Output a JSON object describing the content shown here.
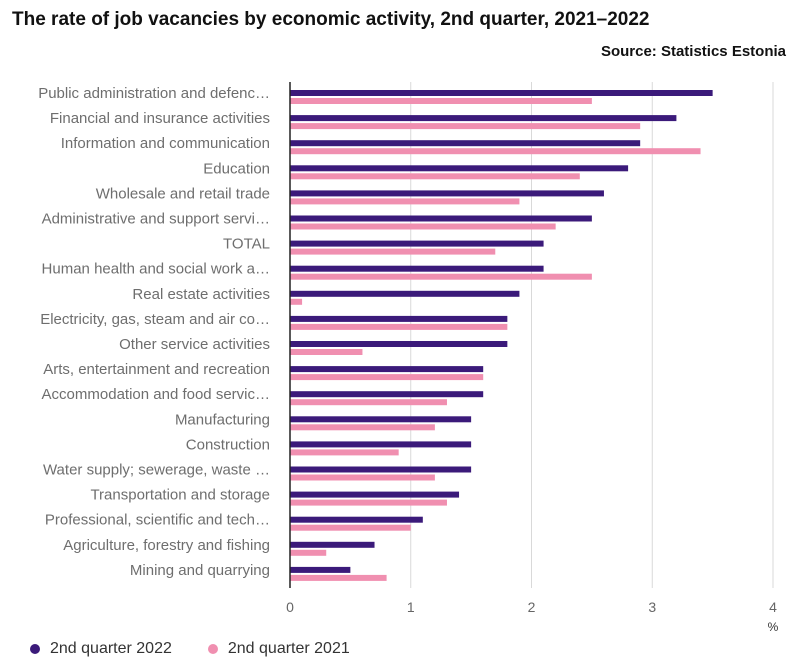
{
  "header": {
    "title": "The rate of job vacancies by economic activity, 2nd quarter, 2021–2022",
    "source": "Source: Statistics Estonia"
  },
  "chart_data": {
    "type": "bar",
    "orientation": "horizontal",
    "categories": [
      "Public administration and defenc…",
      "Financial and insurance activities",
      "Information and communication",
      "Education",
      "Wholesale and retail trade",
      "Administrative and support servi…",
      "TOTAL",
      "Human health and social work a…",
      "Real estate activities",
      "Electricity, gas, steam and air co…",
      "Other service activities",
      "Arts, entertainment and recreation",
      "Accommodation and food servic…",
      "Manufacturing",
      "Construction",
      "Water supply; sewerage, waste …",
      "Transportation and storage",
      "Professional, scientific and tech…",
      "Agriculture, forestry and fishing",
      "Mining and quarrying"
    ],
    "series": [
      {
        "name": "2nd quarter 2022",
        "color": "#3b1a7a",
        "values": [
          3.5,
          3.2,
          2.9,
          2.8,
          2.6,
          2.5,
          2.1,
          2.1,
          1.9,
          1.8,
          1.8,
          1.6,
          1.6,
          1.5,
          1.5,
          1.5,
          1.4,
          1.1,
          0.7,
          0.5
        ]
      },
      {
        "name": "2nd quarter 2021",
        "color": "#f08fb0",
        "values": [
          2.5,
          2.9,
          3.4,
          2.4,
          1.9,
          2.2,
          1.7,
          2.5,
          0.1,
          1.8,
          0.6,
          1.6,
          1.3,
          1.2,
          0.9,
          1.2,
          1.3,
          1.0,
          0.3,
          0.8
        ]
      }
    ],
    "x_ticks": [
      0,
      1,
      2,
      3,
      4
    ],
    "xlim": [
      0,
      4
    ],
    "xlabel": "%",
    "grid": true,
    "legend_position": "bottom-left"
  }
}
